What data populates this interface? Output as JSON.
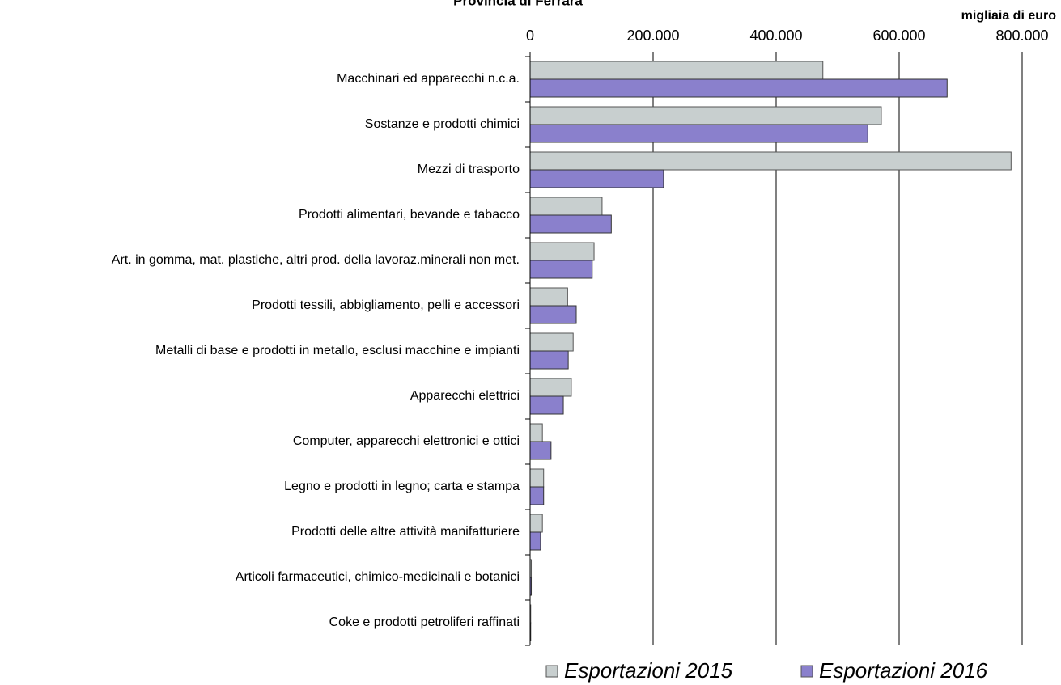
{
  "chart_data": {
    "type": "hbar",
    "title": "Provincia di Ferrara",
    "x_label": "migliaia di euro",
    "categories": [
      "Macchinari ed apparecchi n.c.a.",
      "Sostanze e prodotti chimici",
      "Mezzi di trasporto",
      "Prodotti alimentari, bevande e tabacco",
      "Art. in gomma, mat. plastiche, altri prod. della lavoraz.minerali non met.",
      "Prodotti tessili, abbigliamento, pelli e accessori",
      "Metalli di base e prodotti in metallo, esclusi macchine e impianti",
      "Apparecchi elettrici",
      "Computer, apparecchi elettronici e ottici",
      "Legno e prodotti in legno; carta e stampa",
      "Prodotti delle altre attività manifatturiere",
      "Articoli farmaceutici, chimico-medicinali e botanici",
      "Coke e prodotti petroliferi raffinati"
    ],
    "series": [
      {
        "name": "Esportazioni 2015",
        "color": "#c8cfcf",
        "values": [
          476000,
          571000,
          782000,
          117000,
          104000,
          61000,
          70000,
          67000,
          20000,
          22000,
          20000,
          2000,
          1000
        ]
      },
      {
        "name": "Esportazioni 2016",
        "color": "#8a80cc",
        "values": [
          678000,
          549000,
          217000,
          132000,
          101000,
          75000,
          62000,
          54000,
          34000,
          22000,
          17000,
          2000,
          1000
        ]
      }
    ],
    "xlim": [
      0,
      800000
    ],
    "xticks": [
      0,
      {
        "value": 200000,
        "label": "200.000"
      },
      {
        "value": 400000,
        "label": "400.000"
      },
      {
        "value": 600000,
        "label": "600.000"
      },
      {
        "value": 800000,
        "label": "800.000"
      }
    ],
    "grid": true,
    "legend": "bottom"
  }
}
